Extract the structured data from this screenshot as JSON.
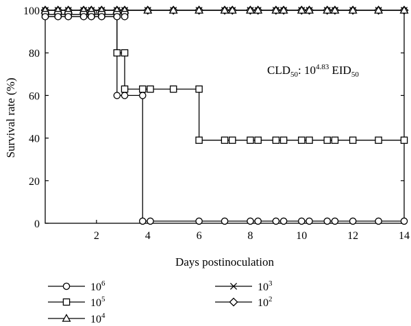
{
  "chart_data": {
    "type": "line",
    "xlabel": "Days postinoculation",
    "ylabel": "Survival rate (%)",
    "xlim": [
      0,
      14
    ],
    "ylim": [
      0,
      100
    ],
    "xticks": [
      2,
      4,
      6,
      8,
      10,
      12,
      14
    ],
    "yticks": [
      0,
      20,
      40,
      60,
      80,
      100
    ],
    "grid": false,
    "legend_position": "bottom",
    "annotation": {
      "prefix": "CLD",
      "prefix_sub": "50",
      "mid": ": 10",
      "mid_sup": "4.83",
      "suffix": " EID",
      "suffix_sub": "50"
    },
    "series": [
      {
        "name_base": "10",
        "name_exp": "6",
        "marker": "circle",
        "line": [
          [
            0,
            97
          ],
          [
            2.8,
            97
          ],
          [
            2.8,
            60
          ],
          [
            3.8,
            60
          ],
          [
            3.8,
            1
          ],
          [
            14,
            1
          ]
        ],
        "points": [
          [
            0,
            97
          ],
          [
            0.5,
            97
          ],
          [
            0.9,
            97
          ],
          [
            1.5,
            97
          ],
          [
            1.8,
            97
          ],
          [
            2.2,
            97
          ],
          [
            2.8,
            97
          ],
          [
            3.1,
            97
          ],
          [
            2.8,
            60
          ],
          [
            3.1,
            60
          ],
          [
            3.8,
            60
          ],
          [
            3.8,
            1
          ],
          [
            4.1,
            1
          ],
          [
            6,
            1
          ],
          [
            7,
            1
          ],
          [
            8,
            1
          ],
          [
            8.3,
            1
          ],
          [
            9,
            1
          ],
          [
            9.3,
            1
          ],
          [
            10,
            1
          ],
          [
            10.3,
            1
          ],
          [
            11,
            1
          ],
          [
            11.3,
            1
          ],
          [
            12,
            1
          ],
          [
            13,
            1
          ],
          [
            14,
            1
          ]
        ]
      },
      {
        "name_base": "10",
        "name_exp": "5",
        "marker": "square",
        "line": [
          [
            0,
            98
          ],
          [
            2.8,
            98
          ],
          [
            2.8,
            80
          ],
          [
            3.1,
            80
          ],
          [
            3.1,
            63
          ],
          [
            6,
            63
          ],
          [
            6,
            39
          ],
          [
            14,
            39
          ]
        ],
        "points": [
          [
            0,
            98
          ],
          [
            0.5,
            98
          ],
          [
            0.9,
            98
          ],
          [
            1.5,
            98
          ],
          [
            1.8,
            98
          ],
          [
            2.2,
            98
          ],
          [
            2.8,
            98
          ],
          [
            3.1,
            98
          ],
          [
            2.8,
            80
          ],
          [
            3.1,
            80
          ],
          [
            3.1,
            63
          ],
          [
            3.8,
            63
          ],
          [
            4.1,
            63
          ],
          [
            5,
            63
          ],
          [
            6,
            63
          ],
          [
            6,
            39
          ],
          [
            7,
            39
          ],
          [
            7.3,
            39
          ],
          [
            8,
            39
          ],
          [
            8.3,
            39
          ],
          [
            9,
            39
          ],
          [
            9.3,
            39
          ],
          [
            10,
            39
          ],
          [
            10.3,
            39
          ],
          [
            11,
            39
          ],
          [
            11.3,
            39
          ],
          [
            12,
            39
          ],
          [
            13,
            39
          ],
          [
            14,
            39
          ]
        ]
      },
      {
        "name_base": "10",
        "name_exp": "4",
        "marker": "triangle",
        "line": [
          [
            0,
            100
          ],
          [
            14,
            100
          ]
        ],
        "points": [
          [
            0,
            100
          ],
          [
            0.5,
            100
          ],
          [
            0.9,
            100
          ],
          [
            1.5,
            100
          ],
          [
            1.8,
            100
          ],
          [
            2.2,
            100
          ],
          [
            2.8,
            100
          ],
          [
            3.1,
            100
          ],
          [
            4,
            100
          ],
          [
            5,
            100
          ],
          [
            6,
            100
          ],
          [
            7,
            100
          ],
          [
            7.3,
            100
          ],
          [
            8,
            100
          ],
          [
            8.3,
            100
          ],
          [
            9,
            100
          ],
          [
            9.3,
            100
          ],
          [
            10,
            100
          ],
          [
            10.3,
            100
          ],
          [
            11,
            100
          ],
          [
            11.3,
            100
          ],
          [
            12,
            100
          ],
          [
            13,
            100
          ],
          [
            14,
            100
          ]
        ]
      },
      {
        "name_base": "10",
        "name_exp": "3",
        "marker": "x",
        "line": [
          [
            0,
            100
          ],
          [
            14,
            100
          ]
        ],
        "points": [
          [
            0,
            100
          ],
          [
            0.5,
            100
          ],
          [
            0.9,
            100
          ],
          [
            1.5,
            100
          ],
          [
            1.8,
            100
          ],
          [
            2.2,
            100
          ],
          [
            2.8,
            100
          ],
          [
            3.1,
            100
          ],
          [
            4,
            100
          ],
          [
            5,
            100
          ],
          [
            6,
            100
          ],
          [
            7,
            100
          ],
          [
            7.3,
            100
          ],
          [
            8,
            100
          ],
          [
            8.3,
            100
          ],
          [
            9,
            100
          ],
          [
            9.3,
            100
          ],
          [
            10,
            100
          ],
          [
            10.3,
            100
          ],
          [
            11,
            100
          ],
          [
            11.3,
            100
          ],
          [
            12,
            100
          ],
          [
            13,
            100
          ],
          [
            14,
            100
          ]
        ]
      },
      {
        "name_base": "10",
        "name_exp": "2",
        "marker": "diamond",
        "line": [
          [
            0,
            100
          ],
          [
            14,
            100
          ]
        ],
        "points": [
          [
            0,
            100
          ],
          [
            0.5,
            100
          ],
          [
            0.9,
            100
          ],
          [
            1.5,
            100
          ],
          [
            1.8,
            100
          ],
          [
            2.2,
            100
          ],
          [
            2.8,
            100
          ],
          [
            3.1,
            100
          ],
          [
            4,
            100
          ],
          [
            5,
            100
          ],
          [
            6,
            100
          ],
          [
            7,
            100
          ],
          [
            7.3,
            100
          ],
          [
            8,
            100
          ],
          [
            8.3,
            100
          ],
          [
            9,
            100
          ],
          [
            9.3,
            100
          ],
          [
            10,
            100
          ],
          [
            10.3,
            100
          ],
          [
            11,
            100
          ],
          [
            11.3,
            100
          ],
          [
            12,
            100
          ],
          [
            13,
            100
          ],
          [
            14,
            100
          ]
        ]
      }
    ]
  }
}
